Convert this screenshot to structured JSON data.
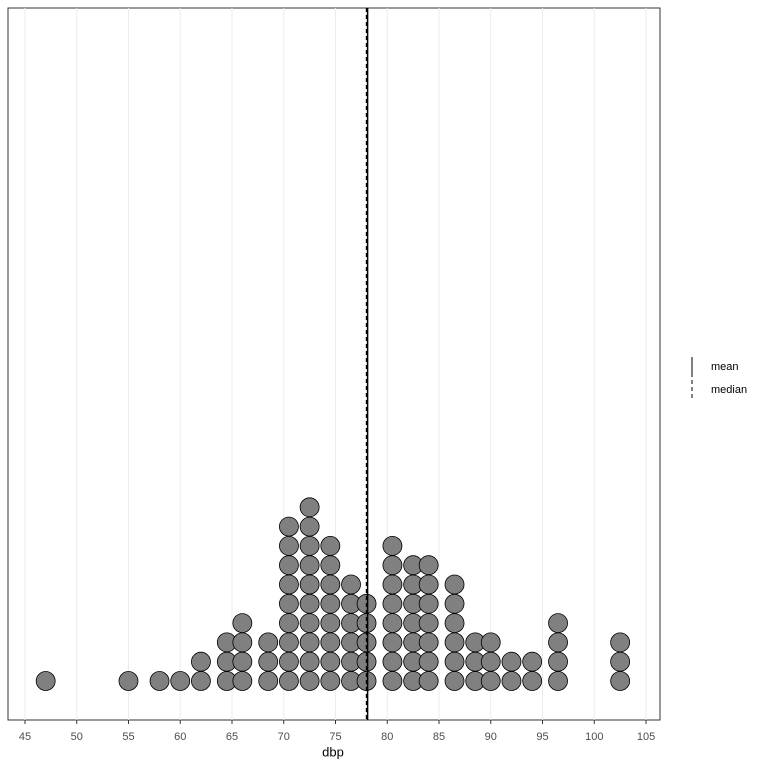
{
  "chart_data": {
    "type": "dotplot",
    "x_label": "dbp",
    "x": [
      47,
      55,
      58,
      60,
      62,
      64.5,
      66,
      68.5,
      70.5,
      72.5,
      74.5,
      76.5,
      78,
      80.5,
      82.5,
      84,
      86.5,
      88.5,
      90,
      92,
      94,
      96.5,
      102.5
    ],
    "counts": [
      1,
      1,
      1,
      1,
      2,
      3,
      4,
      3,
      9,
      10,
      8,
      6,
      5,
      8,
      7,
      7,
      6,
      3,
      3,
      2,
      2,
      4,
      3
    ],
    "color": "#808080",
    "xlim": [
      43.36,
      106.35
    ],
    "xticks": [
      45,
      50,
      55,
      60,
      65,
      70,
      75,
      80,
      85,
      90,
      95,
      100,
      105
    ],
    "grid": true,
    "reference_lines": [
      {
        "name": "mean",
        "value": 78.1,
        "style": "solid"
      },
      {
        "name": "median",
        "value": 78,
        "style": "dashed"
      }
    ],
    "legend_position": "right"
  }
}
